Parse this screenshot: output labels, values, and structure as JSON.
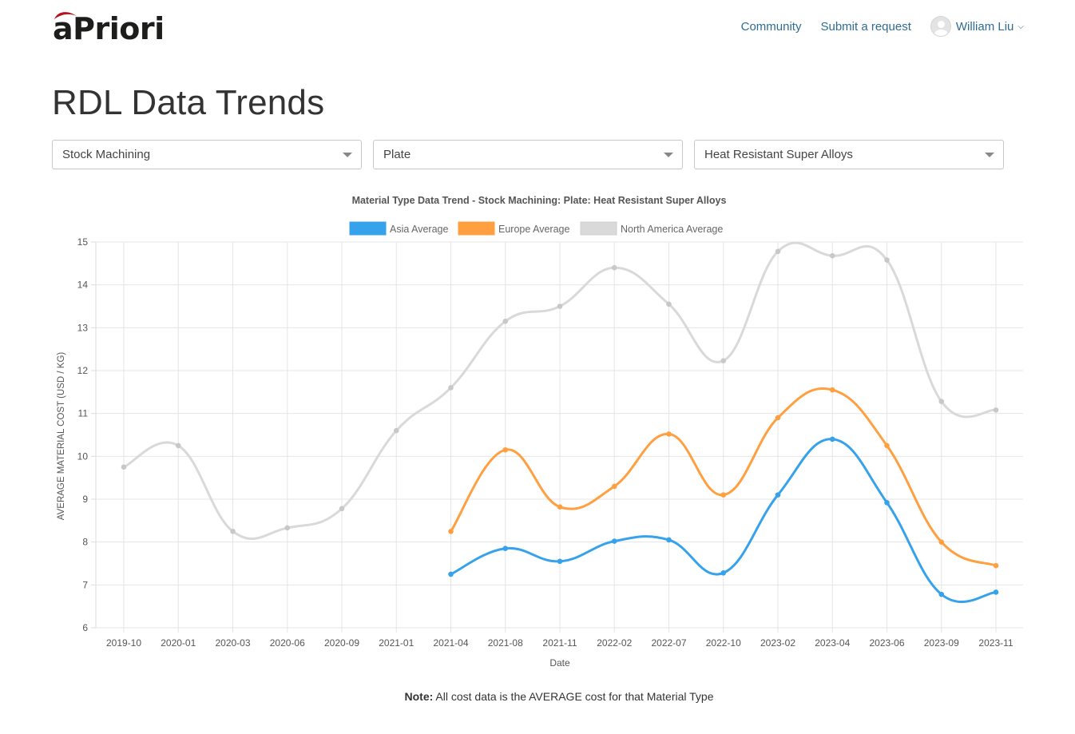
{
  "header": {
    "logo_text": "aPriori",
    "nav": [
      {
        "label": "Community"
      },
      {
        "label": "Submit a request"
      }
    ],
    "user_name": "William Liu"
  },
  "page_title": "RDL Data Trends",
  "filters": {
    "process": "Stock Machining",
    "form": "Plate",
    "material": "Heat Resistant Super Alloys"
  },
  "chart_data": {
    "type": "line",
    "title": "Material Type Data Trend - Stock Machining: Plate: Heat Resistant Super Alloys",
    "xlabel": "Date",
    "ylabel": "AVERAGE MATERIAL COST (USD / KG)",
    "ylim": [
      6,
      15
    ],
    "yticks": [
      6,
      7,
      8,
      9,
      10,
      11,
      12,
      13,
      14,
      15
    ],
    "grid": true,
    "legend_position": "top-center",
    "categories": [
      "2019-10",
      "2020-01",
      "2020-03",
      "2020-06",
      "2020-09",
      "2021-01",
      "2021-04",
      "2021-08",
      "2021-11",
      "2022-02",
      "2022-07",
      "2022-10",
      "2023-02",
      "2023-04",
      "2023-06",
      "2023-09",
      "2023-11"
    ],
    "series": [
      {
        "name": "Asia Average",
        "color": "#36a2eb",
        "values": [
          null,
          null,
          null,
          null,
          null,
          null,
          7.25,
          7.85,
          7.55,
          8.02,
          8.05,
          7.28,
          9.1,
          10.4,
          8.92,
          6.78,
          6.83
        ]
      },
      {
        "name": "Europe Average",
        "color": "#ff9f40",
        "values": [
          null,
          null,
          null,
          null,
          null,
          null,
          8.25,
          10.15,
          8.82,
          9.3,
          10.52,
          9.1,
          10.9,
          11.55,
          10.25,
          8.0,
          7.45
        ]
      },
      {
        "name": "North America Average",
        "color": "#d9d9d9",
        "values": [
          9.75,
          10.25,
          8.25,
          8.33,
          8.78,
          10.6,
          11.6,
          13.15,
          13.5,
          14.4,
          13.55,
          12.23,
          14.78,
          14.68,
          14.58,
          11.28,
          11.08
        ]
      }
    ]
  },
  "note": {
    "label": "Note:",
    "text": " All cost data is the AVERAGE cost for that Material Type"
  }
}
